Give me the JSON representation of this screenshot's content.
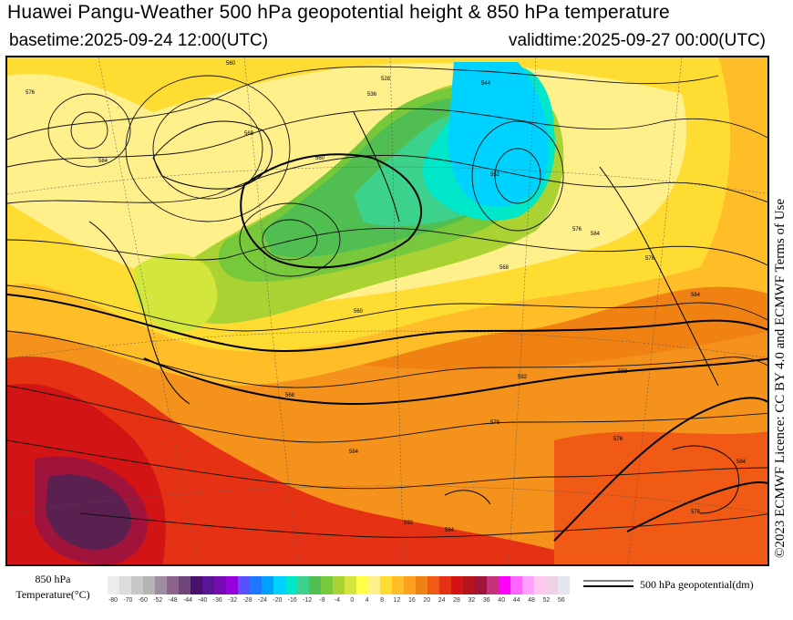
{
  "header": {
    "title": "Huawei Pangu-Weather 500 hPa geopotential height & 850 hPa temperature",
    "basetime": "basetime:2025-09-24 12:00(UTC)",
    "validtime": "validtime:2025-09-27 00:00(UTC)"
  },
  "license": "©2023 ECMWF Licence: CC BY 4.0 and ECMWF Terms of Use",
  "legend": {
    "title_line1": "850 hPa",
    "title_line2": "Temperature(°C)",
    "colors": [
      "#ececec",
      "#dcdcdc",
      "#c8c8c8",
      "#b4b4b4",
      "#a08ca0",
      "#8c648c",
      "#6e4678",
      "#4b0f6e",
      "#5a1496",
      "#780ab4",
      "#9600dc",
      "#5a50ff",
      "#1e78ff",
      "#00a0ff",
      "#00d2ff",
      "#00e6c8",
      "#3cd28c",
      "#50be50",
      "#78c83c",
      "#aad232",
      "#d2e63c",
      "#ffff46",
      "#fff08c",
      "#ffdc32",
      "#ffbe28",
      "#ffa01e",
      "#f08214",
      "#f05a14",
      "#e63214",
      "#d21414",
      "#b4141e",
      "#a0143c",
      "#c8327d",
      "#ff00ff",
      "#ff64ff",
      "#ffa0ff",
      "#ffc8f0",
      "#f0d2e6",
      "#e6e6f0"
    ],
    "ticks": [
      "-80",
      "-70",
      "-60",
      "-52",
      "-48",
      "-44",
      "-40",
      "-36",
      "-32",
      "-28",
      "-24",
      "-20",
      "-16",
      "-12",
      "-8",
      "-4",
      "0",
      "4",
      "8",
      "12",
      "16",
      "20",
      "24",
      "28",
      "32",
      "36",
      "40",
      "44",
      "48",
      "52",
      "56"
    ],
    "contour_label": "500 hPa geopotential(dm)"
  },
  "map": {
    "contour_labels": [
      "576",
      "584",
      "560",
      "568",
      "560",
      "528",
      "536",
      "544",
      "552",
      "576",
      "584",
      "560",
      "568",
      "576",
      "584",
      "592",
      "568",
      "576",
      "584",
      "592",
      "576",
      "576",
      "592",
      "584",
      "584"
    ]
  }
}
